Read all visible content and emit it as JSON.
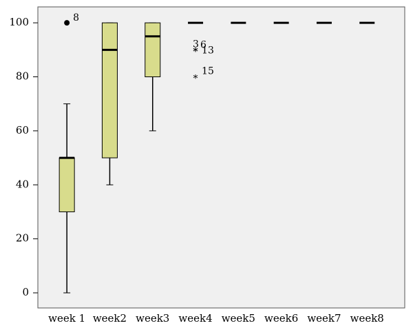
{
  "chart_data": {
    "type": "box",
    "categories": [
      "week 1",
      "week2",
      "week3",
      "week4",
      "week5",
      "week6",
      "week7",
      "week8"
    ],
    "boxes": [
      {
        "low": 0,
        "q1": 30,
        "median": 50,
        "q3": 50,
        "high": 70,
        "outliers": [
          {
            "value": 100,
            "label": "8",
            "marker": "circle"
          }
        ]
      },
      {
        "low": 40,
        "q1": 50,
        "median": 90,
        "q3": 100,
        "high": 100,
        "outliers": []
      },
      {
        "low": 60,
        "q1": 80,
        "median": 95,
        "q3": 100,
        "high": 100,
        "outliers": []
      },
      {
        "low": 100,
        "q1": 100,
        "median": 100,
        "q3": 100,
        "high": 100,
        "outliers": [
          {
            "value": 90,
            "label": "3",
            "marker": "star"
          },
          {
            "value": 90,
            "label": "6",
            "marker": "star"
          },
          {
            "value": 90,
            "label": "13",
            "marker": "star"
          },
          {
            "value": 80,
            "label": "15",
            "marker": "star"
          }
        ]
      },
      {
        "low": 100,
        "q1": 100,
        "median": 100,
        "q3": 100,
        "high": 100,
        "outliers": []
      },
      {
        "low": 100,
        "q1": 100,
        "median": 100,
        "q3": 100,
        "high": 100,
        "outliers": []
      },
      {
        "low": 100,
        "q1": 100,
        "median": 100,
        "q3": 100,
        "high": 100,
        "outliers": []
      },
      {
        "low": 100,
        "q1": 100,
        "median": 100,
        "q3": 100,
        "high": 100,
        "outliers": []
      }
    ],
    "color": "#d8dc8c",
    "ylim": [
      -5.6,
      105.9
    ],
    "yticks": [
      0,
      20,
      40,
      60,
      80,
      100
    ]
  }
}
